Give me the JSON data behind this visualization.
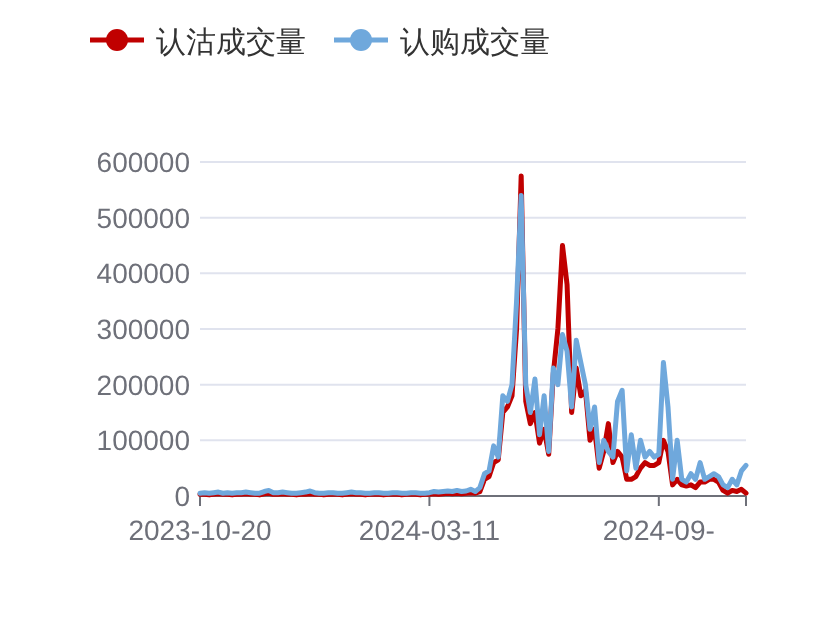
{
  "chart_data": {
    "type": "line",
    "legend": "top left",
    "grid": "y",
    "categories": [
      "2023-10-20",
      null,
      null,
      null,
      null,
      null,
      null,
      null,
      null,
      null,
      null,
      null,
      null,
      null,
      null,
      null,
      null,
      null,
      null,
      null,
      null,
      null,
      null,
      null,
      null,
      null,
      null,
      null,
      null,
      null,
      null,
      null,
      null,
      null,
      null,
      null,
      null,
      null,
      null,
      null,
      null,
      null,
      null,
      null,
      null,
      null,
      null,
      null,
      null,
      null,
      "2024-03-11",
      null,
      null,
      null,
      null,
      null,
      null,
      null,
      null,
      null,
      null,
      null,
      null,
      null,
      null,
      null,
      null,
      null,
      null,
      null,
      null,
      null,
      null,
      null,
      null,
      null,
      null,
      null,
      null,
      null,
      null,
      null,
      null,
      null,
      null,
      null,
      null,
      null,
      null,
      null,
      null,
      null,
      null,
      null,
      null,
      null,
      null,
      null,
      null,
      null,
      "2024-09-",
      null,
      null,
      null,
      null,
      null,
      null,
      null,
      null,
      null,
      null,
      null,
      null,
      null,
      null,
      null,
      null,
      null,
      null,
      null
    ],
    "ylim": [
      0,
      600000
    ],
    "yticks": [
      0,
      100000,
      200000,
      300000,
      400000,
      500000,
      600000
    ],
    "series": [
      {
        "name": "认沽成交量",
        "color": "#c00000",
        "values": [
          3000,
          3000,
          2000,
          3000,
          4000,
          3000,
          3000,
          2000,
          3000,
          3000,
          4000,
          3000,
          3000,
          2000,
          4000,
          5000,
          3000,
          3000,
          4000,
          3000,
          3000,
          2000,
          3000,
          3000,
          4000,
          3000,
          3000,
          2000,
          3000,
          3000,
          3000,
          2000,
          3000,
          4000,
          3000,
          3000,
          2000,
          3000,
          3000,
          3000,
          2000,
          3000,
          3000,
          3000,
          2000,
          3000,
          3000,
          3000,
          2000,
          3000,
          3000,
          4000,
          3000,
          4000,
          5000,
          4000,
          5000,
          4000,
          5000,
          6000,
          5000,
          8000,
          30000,
          35000,
          60000,
          65000,
          150000,
          160000,
          180000,
          300000,
          575000,
          170000,
          130000,
          150000,
          95000,
          120000,
          75000,
          220000,
          300000,
          450000,
          380000,
          150000,
          230000,
          180000,
          190000,
          100000,
          120000,
          50000,
          80000,
          130000,
          60000,
          80000,
          70000,
          30000,
          30000,
          35000,
          50000,
          60000,
          55000,
          55000,
          60000,
          100000,
          80000,
          20000,
          30000,
          20000,
          18000,
          20000,
          15000,
          25000,
          25000,
          30000,
          30000,
          25000,
          10000,
          5000,
          10000,
          8000,
          12000,
          5000
        ]
      },
      {
        "name": "认购成交量",
        "color": "#6fa8dc",
        "values": [
          5000,
          6000,
          5000,
          6000,
          7000,
          5000,
          6000,
          5000,
          6000,
          6000,
          7000,
          6000,
          5000,
          5000,
          8000,
          10000,
          6000,
          6000,
          7000,
          6000,
          5000,
          5000,
          6000,
          7000,
          9000,
          6000,
          5000,
          5000,
          6000,
          6000,
          5000,
          5000,
          6000,
          7000,
          6000,
          6000,
          5000,
          5000,
          6000,
          6000,
          5000,
          5000,
          6000,
          6000,
          5000,
          5000,
          6000,
          6000,
          5000,
          5000,
          6000,
          8000,
          7000,
          8000,
          9000,
          8000,
          10000,
          8000,
          9000,
          12000,
          8000,
          15000,
          40000,
          45000,
          90000,
          70000,
          180000,
          170000,
          200000,
          350000,
          540000,
          200000,
          150000,
          210000,
          110000,
          180000,
          80000,
          230000,
          200000,
          290000,
          260000,
          160000,
          280000,
          240000,
          200000,
          120000,
          160000,
          60000,
          100000,
          80000,
          70000,
          170000,
          190000,
          45000,
          110000,
          50000,
          100000,
          70000,
          80000,
          70000,
          75000,
          240000,
          160000,
          30000,
          100000,
          30000,
          25000,
          40000,
          30000,
          60000,
          30000,
          35000,
          40000,
          35000,
          20000,
          15000,
          30000,
          20000,
          45000,
          55000
        ]
      }
    ]
  }
}
